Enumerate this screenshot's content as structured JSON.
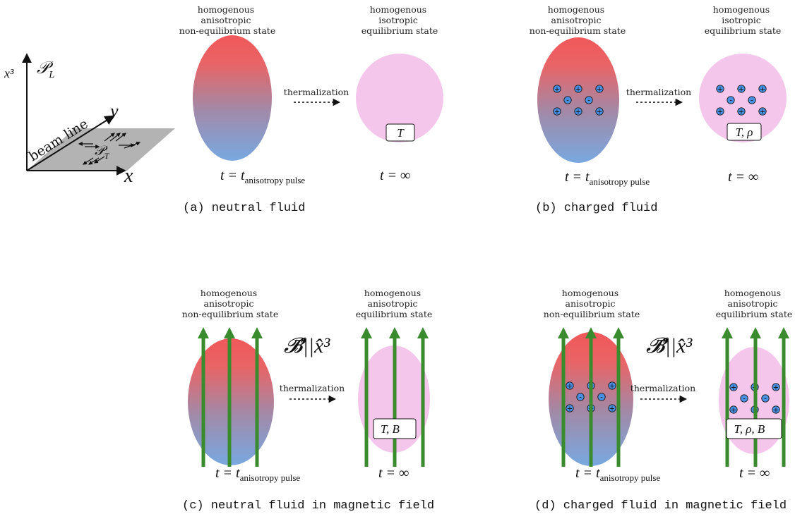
{
  "axes": {
    "z_label": "x³",
    "PL_label": "𝒫",
    "PL_sub": "L",
    "y_label": "y",
    "x_label": "x",
    "beam_line": "beam line",
    "PT_label": "𝒫",
    "PT_sub": "T"
  },
  "common": {
    "thermalization": "thermalization",
    "t_pulse_lhs": "t = t",
    "t_pulse_sub": "anisotropy pulse",
    "t_inf": "t = ∞",
    "B_field_label": "𝓑⃗||x̂³",
    "ion_plus": "+",
    "ion_minus": "-"
  },
  "panels": {
    "a": {
      "caption": "(a) neutral fluid",
      "left_state": [
        "homogenous",
        "anisotropic",
        "non-equilibrium state"
      ],
      "right_state": [
        "homogenous",
        "isotropic",
        "equilibrium state"
      ],
      "box": "T"
    },
    "b": {
      "caption": "(b) charged fluid",
      "left_state": [
        "homogenous",
        "anisotropic",
        "non-equilibrium state"
      ],
      "right_state": [
        "homogenous",
        "isotropic",
        "equilibrium state"
      ],
      "box": "T, ρ"
    },
    "c": {
      "caption": "(c) neutral fluid in magnetic field",
      "left_state": [
        "homogenous",
        "anisotropic",
        "non-equilibrium state"
      ],
      "right_state": [
        "homogenous",
        "anisotropic",
        "equilibrium state"
      ],
      "box": "T, B⃗"
    },
    "d": {
      "caption": "(d) charged fluid in magnetic field",
      "left_state": [
        "homogenous",
        "anisotropic",
        "non-equilibrium state"
      ],
      "right_state": [
        "homogenous",
        "anisotropic",
        "equilibrium state"
      ],
      "box": "T, ρ, B⃗"
    }
  },
  "colors": {
    "ellipse_top": "#f0585a",
    "ellipse_bottom": "#78a8e0",
    "equilibrium_fill": "#f5c6ec",
    "field_arrow": "#3a8a2e",
    "field_label": "#33bb22",
    "ion_fill": "#4a90e2",
    "plane_fill": "#b3b3b3"
  }
}
